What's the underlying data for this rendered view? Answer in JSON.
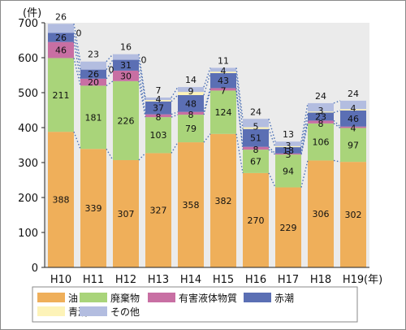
{
  "chart_data": {
    "type": "bar",
    "stacked": true,
    "categories": [
      "H10",
      "H11",
      "H12",
      "H13",
      "H14",
      "H15",
      "H16",
      "H17",
      "H18",
      "H19"
    ],
    "series": [
      {
        "name": "油",
        "color": "#efaf5a",
        "values": [
          388,
          339,
          307,
          327,
          358,
          382,
          270,
          229,
          306,
          302
        ]
      },
      {
        "name": "廃棄物",
        "color": "#a9d47a",
        "values": [
          211,
          181,
          226,
          103,
          79,
          124,
          67,
          94,
          106,
          97
        ]
      },
      {
        "name": "有害液体物質",
        "color": "#c86fa3",
        "values": [
          46,
          20,
          30,
          8,
          8,
          7,
          8,
          3,
          8,
          4
        ]
      },
      {
        "name": "赤潮",
        "color": "#5b6fb4",
        "values": [
          26,
          26,
          31,
          37,
          48,
          43,
          51,
          18,
          23,
          46
        ]
      },
      {
        "name": "青潮",
        "color": "#fdf3b8",
        "values": [
          0,
          0,
          0,
          4,
          9,
          4,
          5,
          3,
          3,
          4
        ]
      },
      {
        "name": "その他",
        "color": "#b3bde0",
        "values": [
          26,
          23,
          16,
          7,
          14,
          11,
          24,
          13,
          24,
          24
        ]
      }
    ],
    "ylim": [
      0,
      700
    ],
    "yticks": [
      0,
      100,
      200,
      300,
      400,
      500,
      600,
      700
    ],
    "y_unit": "(件)",
    "x_unit": "(年)",
    "grid": false,
    "legend_position": "bottom",
    "plot_background": "#ebebeb"
  }
}
